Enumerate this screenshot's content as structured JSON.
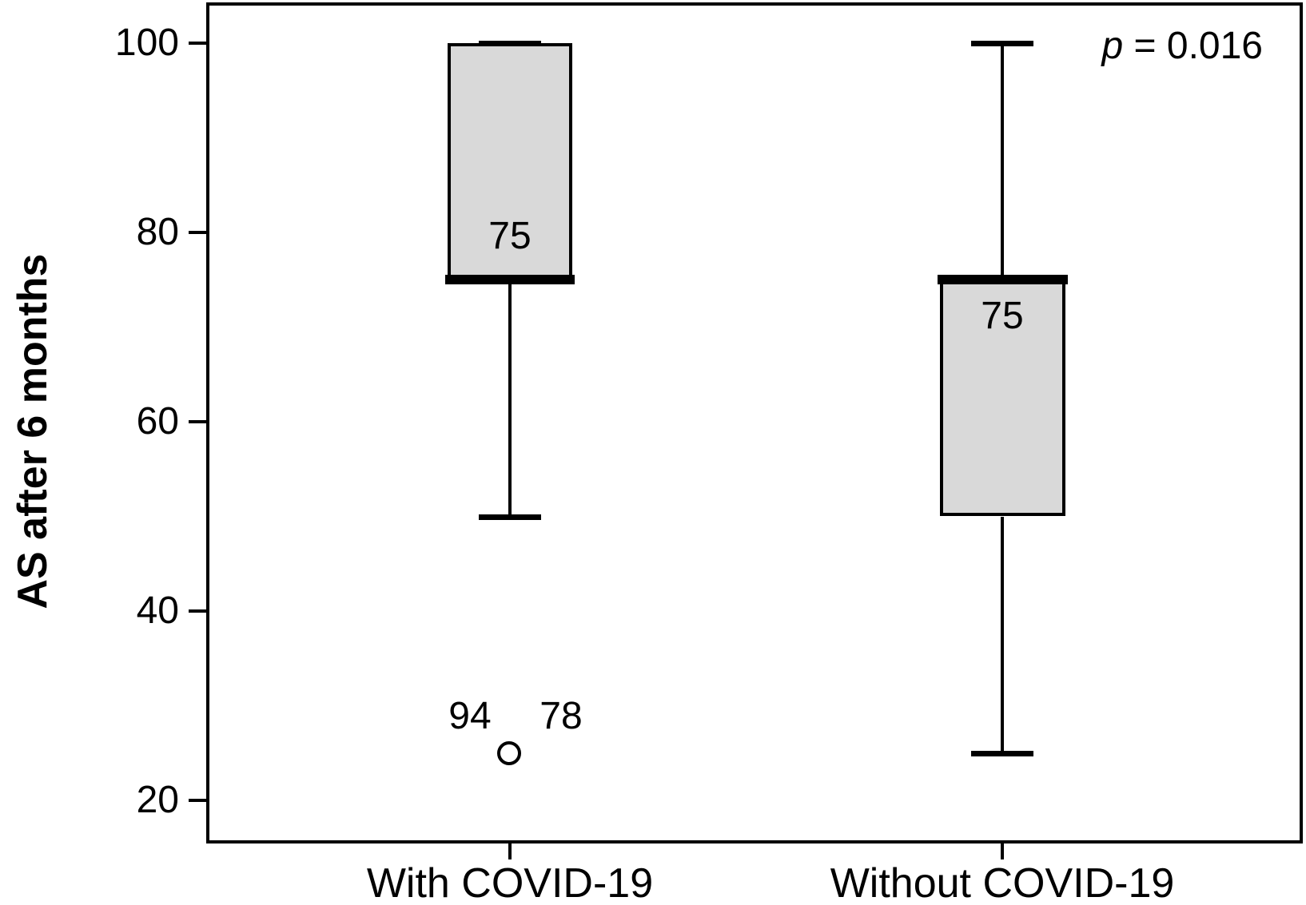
{
  "figure": {
    "background": "#ffffff",
    "line_color": "#000000",
    "box_fill": "#d9d9d9",
    "p_annotation": {
      "symbol": "p",
      "rest": " = 0.016"
    }
  },
  "chart_data": {
    "type": "boxplot",
    "title": "",
    "xlabel": "",
    "ylabel": "AS after 6 months",
    "ylim": [
      15,
      104
    ],
    "y_ticks": [
      100,
      80,
      60,
      40,
      20
    ],
    "grid": false,
    "legend": null,
    "categories": [
      "With COVID-19",
      "Without COVID-19"
    ],
    "annotations": [
      {
        "text": "p = 0.016",
        "italic_part": "p",
        "position": "top-right"
      }
    ],
    "series": [
      {
        "category": "With COVID-19",
        "whisker_low": 50,
        "q1": 75,
        "median": 75,
        "q3": 100,
        "whisker_high": 100,
        "median_label": "75",
        "outliers": [
          {
            "value": 25,
            "case_labels": [
              "94",
              "78"
            ]
          }
        ]
      },
      {
        "category": "Without COVID-19",
        "whisker_low": 25,
        "q1": 50,
        "median": 75,
        "q3": 75,
        "whisker_high": 100,
        "median_label": "75",
        "outliers": []
      }
    ]
  }
}
